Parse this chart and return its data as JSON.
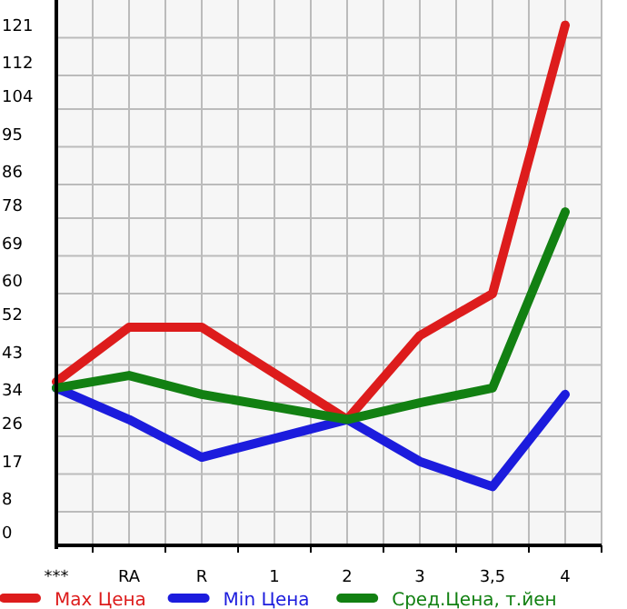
{
  "chart_data": {
    "type": "line",
    "categories": [
      "***",
      "RA",
      "R",
      "1",
      "2",
      "3",
      "3,5",
      "4"
    ],
    "series": [
      {
        "name": "Max Цена",
        "color": "#dd1c1c",
        "values": [
          39,
          52,
          52,
          41,
          30,
          50,
          60,
          124
        ]
      },
      {
        "name": "Min Цена",
        "color": "#1c1cdd",
        "values": [
          37.5,
          30,
          21,
          25.5,
          30,
          20,
          14,
          36
        ]
      },
      {
        "name": "Сред.Цена, т.йен",
        "color": "#128012",
        "values": [
          37.5,
          40.5,
          36,
          33,
          30,
          34,
          37.5,
          79.5
        ]
      }
    ],
    "ylim": [
      0,
      130
    ],
    "yticks": [
      0,
      8,
      17,
      26,
      34,
      43,
      52,
      60,
      69,
      78,
      86,
      95,
      104,
      112,
      121
    ],
    "grid": true,
    "legend": "bottom",
    "marker": "none",
    "line_style": "solid"
  }
}
